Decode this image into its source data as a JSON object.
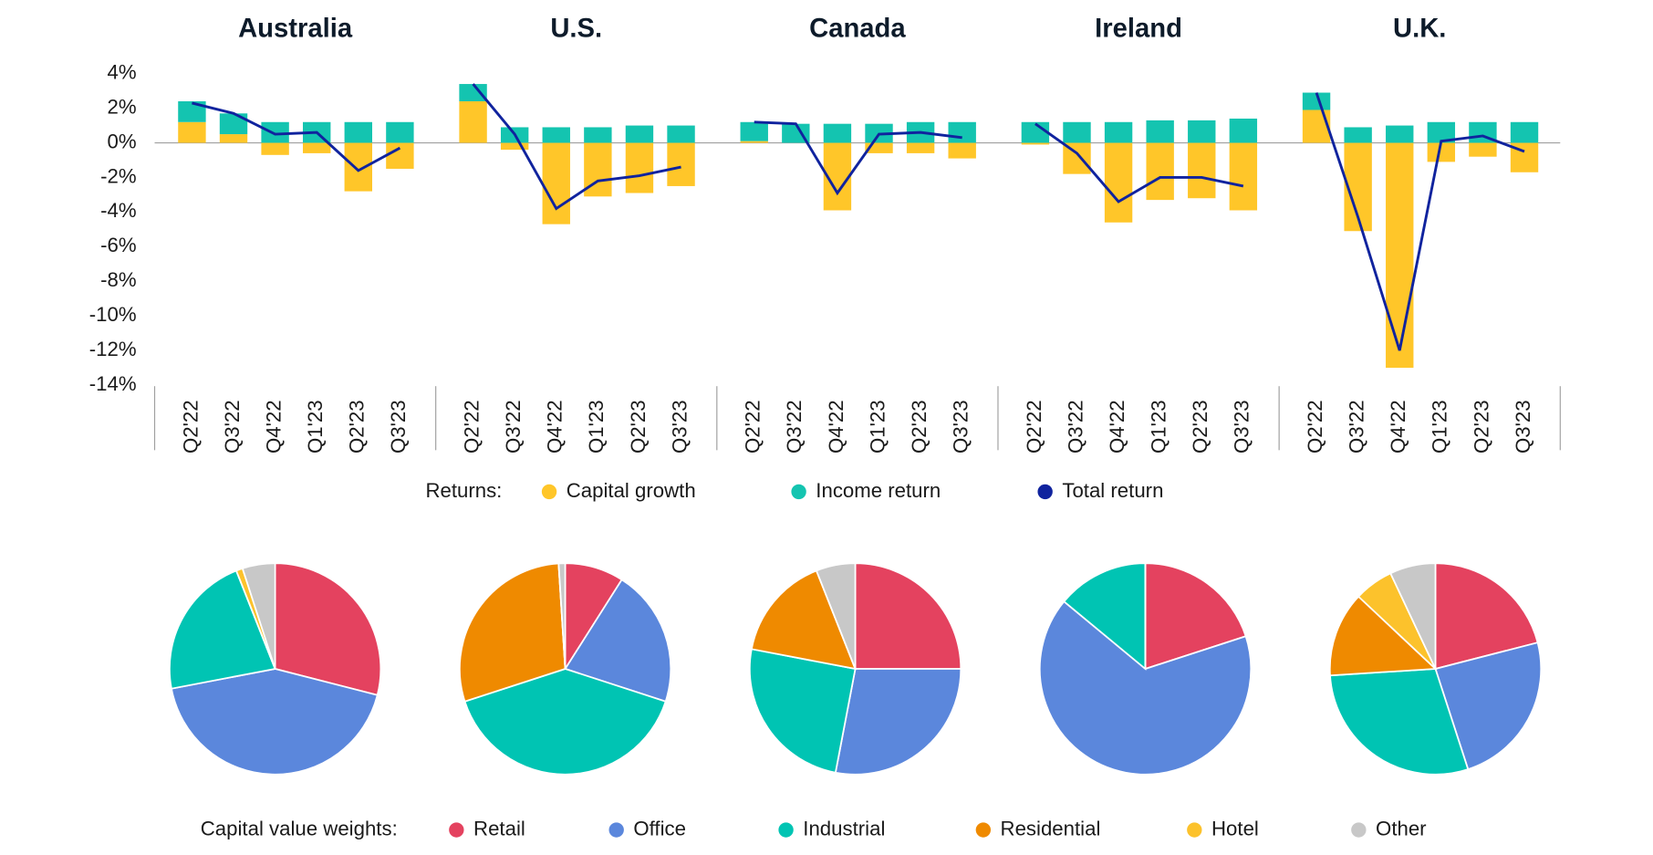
{
  "chart_data": [
    {
      "type": "bar",
      "legend_title": "Returns:",
      "ylim": [
        -14,
        4
      ],
      "yticks": [
        {
          "value": 4,
          "label": "4%"
        },
        {
          "value": 2,
          "label": "2%"
        },
        {
          "value": 0,
          "label": "0%"
        },
        {
          "value": -2,
          "label": "-2%"
        },
        {
          "value": -4,
          "label": "-4%"
        },
        {
          "value": -6,
          "label": "-6%"
        },
        {
          "value": -8,
          "label": "-8%"
        },
        {
          "value": -10,
          "label": "-10%"
        },
        {
          "value": -12,
          "label": "-12%"
        },
        {
          "value": -14,
          "label": "-14%"
        }
      ],
      "series": [
        {
          "name": "Capital growth",
          "color": "#ffc629",
          "kind": "bar"
        },
        {
          "name": "Income return",
          "color": "#14c4b0",
          "kind": "bar"
        },
        {
          "name": "Total return",
          "color": "#10239e",
          "kind": "line"
        }
      ],
      "panels": [
        {
          "title": "Australia",
          "categories": [
            "Q2'22",
            "Q3'22",
            "Q4'22",
            "Q1'23",
            "Q2'23",
            "Q3'23"
          ],
          "values": [
            [
              1.2,
              0.5,
              -0.7,
              -0.6,
              -2.8,
              -1.5
            ],
            [
              1.2,
              1.2,
              1.2,
              1.2,
              1.2,
              1.2
            ],
            [
              2.3,
              1.7,
              0.5,
              0.6,
              -1.6,
              -0.3
            ]
          ]
        },
        {
          "title": "U.S.",
          "categories": [
            "Q2'22",
            "Q3'22",
            "Q4'22",
            "Q1'23",
            "Q2'23",
            "Q3'23"
          ],
          "values": [
            [
              2.4,
              -0.4,
              -4.7,
              -3.1,
              -2.9,
              -2.5
            ],
            [
              1.0,
              0.9,
              0.9,
              0.9,
              1.0,
              1.0
            ],
            [
              3.4,
              0.5,
              -3.8,
              -2.2,
              -1.9,
              -1.4
            ]
          ]
        },
        {
          "title": "Canada",
          "categories": [
            "Q2'22",
            "Q3'22",
            "Q4'22",
            "Q1'23",
            "Q2'23",
            "Q3'23"
          ],
          "values": [
            [
              0.1,
              0,
              -3.9,
              -0.6,
              -0.6,
              -0.9
            ],
            [
              1.1,
              1.1,
              1.1,
              1.1,
              1.2,
              1.2
            ],
            [
              1.2,
              1.1,
              -2.9,
              0.5,
              0.6,
              0.3
            ]
          ]
        },
        {
          "title": "Ireland",
          "categories": [
            "Q2'22",
            "Q3'22",
            "Q4'22",
            "Q1'23",
            "Q2'23",
            "Q3'23"
          ],
          "values": [
            [
              -0.1,
              -1.8,
              -4.6,
              -3.3,
              -3.2,
              -3.9
            ],
            [
              1.2,
              1.2,
              1.2,
              1.3,
              1.3,
              1.4
            ],
            [
              1.1,
              -0.6,
              -3.4,
              -2.0,
              -2.0,
              -2.5
            ]
          ]
        },
        {
          "title": "U.K.",
          "categories": [
            "Q2'22",
            "Q3'22",
            "Q4'22",
            "Q1'23",
            "Q2'23",
            "Q3'23"
          ],
          "values": [
            [
              1.9,
              -5.1,
              -13.0,
              -1.1,
              -0.8,
              -1.7
            ],
            [
              1.0,
              0.9,
              1.0,
              1.2,
              1.2,
              1.2
            ],
            [
              2.9,
              -4.3,
              -12.0,
              0.1,
              0.4,
              -0.5
            ]
          ]
        }
      ]
    },
    {
      "type": "pie",
      "legend_title": "Capital value weights:",
      "labels": [
        "Retail",
        "Office",
        "Industrial",
        "Residential",
        "Hotel",
        "Other"
      ],
      "colors": [
        "#e4425f",
        "#5b87dc",
        "#00c4b3",
        "#ef8a00",
        "#fcc22c",
        "#c8c8c8"
      ],
      "panels": [
        {
          "values": [
            29,
            43,
            22,
            0,
            1,
            5
          ]
        },
        {
          "values": [
            9,
            21,
            40,
            29,
            0,
            1
          ]
        },
        {
          "values": [
            25,
            28,
            25,
            16,
            0,
            6
          ]
        },
        {
          "values": [
            20,
            66,
            14,
            0,
            0,
            0
          ]
        },
        {
          "values": [
            21,
            24,
            29,
            13,
            6,
            7
          ]
        }
      ]
    }
  ]
}
